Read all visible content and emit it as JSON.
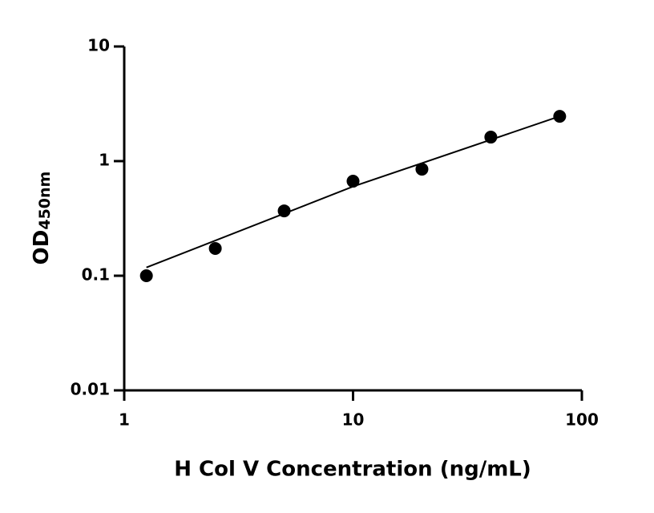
{
  "chart_data": {
    "type": "scatter",
    "xlabel": "H Col V Concentration (ng/mL)",
    "ylabel": "OD",
    "ylabel_sub": "450nm",
    "x": [
      1.25,
      2.5,
      5,
      10,
      20,
      40,
      80
    ],
    "values": [
      0.1,
      0.173,
      0.368,
      0.668,
      0.85,
      1.62,
      2.46
    ],
    "color": "#000000",
    "fit": {
      "x": [
        1.25,
        10,
        80
      ],
      "values": [
        0.118,
        0.6,
        2.46
      ]
    },
    "xlog": true,
    "ylog": true,
    "xlim": [
      1,
      100
    ],
    "xticks": [
      1,
      10,
      100
    ],
    "ylim": [
      0.01,
      10
    ],
    "yticks": [
      0.01,
      0.1,
      1,
      10
    ]
  }
}
